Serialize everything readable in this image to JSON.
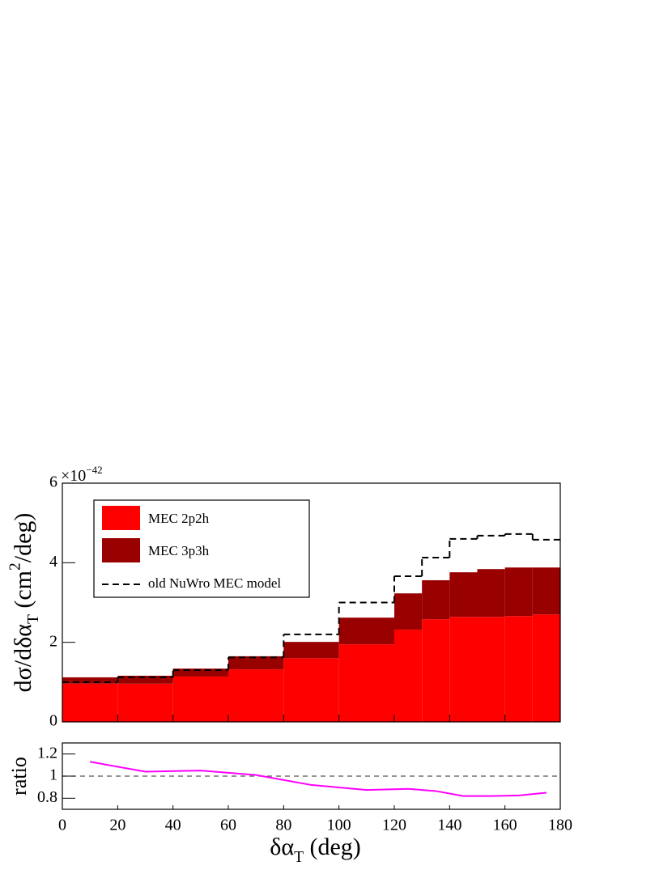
{
  "chart_data": [
    {
      "type": "histogram",
      "bins": [
        0,
        20,
        40,
        60,
        80,
        100,
        120,
        130,
        140,
        150,
        160,
        170,
        180
      ],
      "series": [
        {
          "name": "MEC 2p2h",
          "color": "#ff0000",
          "stacked": true,
          "values": [
            0.96,
            0.96,
            1.14,
            1.32,
            1.6,
            1.95,
            2.32,
            2.58,
            2.64,
            2.64,
            2.66,
            2.7
          ]
        },
        {
          "name": "MEC 3p3h",
          "color": "#990000",
          "stacked": true,
          "values": [
            0.16,
            0.2,
            0.2,
            0.33,
            0.41,
            0.67,
            0.91,
            0.98,
            1.12,
            1.2,
            1.22,
            1.18
          ]
        },
        {
          "name": "old NuWro MEC model",
          "color": "#000000",
          "stacked": false,
          "dashed": true,
          "values": [
            1.0,
            1.12,
            1.3,
            1.62,
            2.2,
            3.0,
            3.66,
            4.13,
            4.6,
            4.68,
            4.72,
            4.58
          ]
        }
      ],
      "xlim": [
        0,
        180
      ],
      "xticks": [
        0,
        20,
        40,
        60,
        80,
        100,
        120,
        140,
        160,
        180
      ],
      "ylim": [
        0,
        6
      ],
      "yticks": [
        0,
        2,
        4,
        6
      ],
      "y_multiplier": [
        {
          "text": "×10"
        },
        {
          "text": "−42",
          "sup": true
        }
      ],
      "ylabel": [
        {
          "text": "dσ/dδα"
        },
        {
          "text": "T",
          "sub": true
        },
        {
          "text": " (cm"
        },
        {
          "text": "2",
          "sup": true
        },
        {
          "text": "/deg)"
        }
      ],
      "legend": "top-left"
    },
    {
      "type": "line",
      "x": [
        10,
        30,
        50,
        70,
        90,
        110,
        125,
        135,
        145,
        155,
        165,
        175
      ],
      "series": [
        {
          "color": "#ff00ff",
          "values": [
            1.13,
            1.04,
            1.05,
            1.01,
            0.92,
            0.875,
            0.885,
            0.865,
            0.82,
            0.82,
            0.825,
            0.85
          ]
        }
      ],
      "reference_line": 1,
      "xlim": [
        0,
        180
      ],
      "xticks": [
        0,
        20,
        40,
        60,
        80,
        100,
        120,
        140,
        160,
        180
      ],
      "ylim": [
        0.7,
        1.3
      ],
      "yticks": [
        0.8,
        1,
        1.2
      ],
      "ylabel": [
        {
          "text": "ratio"
        }
      ],
      "xlabel": [
        {
          "text": "δα"
        },
        {
          "text": "T",
          "sub": true
        },
        {
          "text": " (deg)"
        }
      ]
    }
  ]
}
